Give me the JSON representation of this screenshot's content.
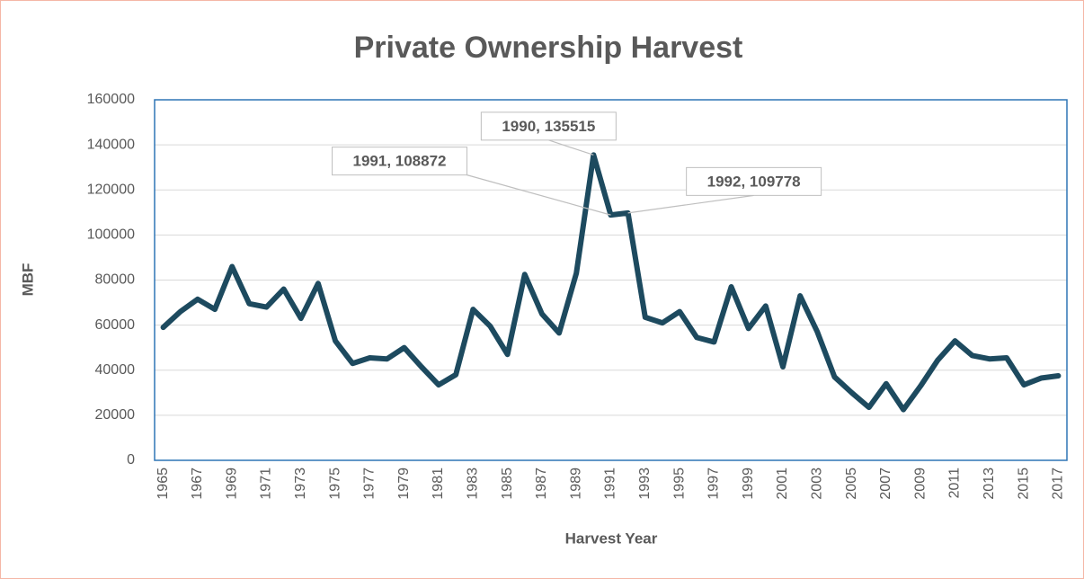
{
  "chart_data": {
    "type": "line",
    "title": "Private Ownership Harvest",
    "x_label": "Harvest Year",
    "y_label": "MBF",
    "x": [
      1965,
      1966,
      1967,
      1968,
      1969,
      1970,
      1971,
      1972,
      1973,
      1974,
      1975,
      1976,
      1977,
      1978,
      1979,
      1980,
      1981,
      1982,
      1983,
      1984,
      1985,
      1986,
      1987,
      1988,
      1989,
      1990,
      1991,
      1992,
      1993,
      1994,
      1995,
      1996,
      1997,
      1998,
      1999,
      2000,
      2001,
      2002,
      2003,
      2004,
      2005,
      2006,
      2007,
      2008,
      2009,
      2010,
      2011,
      2012,
      2013,
      2014,
      2015,
      2016,
      2017
    ],
    "series": [
      {
        "name": "Private",
        "color": "#1d4a5f",
        "values": [
          59000,
          66000,
          71500,
          67000,
          86000,
          69500,
          68000,
          76000,
          63000,
          78500,
          53000,
          43000,
          45500,
          45000,
          50000,
          41500,
          33500,
          38000,
          67000,
          59500,
          47000,
          82500,
          65000,
          56500,
          83000,
          135515,
          108872,
          109778,
          63500,
          61000,
          66000,
          54500,
          52500,
          77000,
          58500,
          68500,
          41500,
          73000,
          57000,
          37000,
          30000,
          23500,
          34000,
          22500,
          33000,
          44500,
          53000,
          46500,
          45000,
          45500,
          33500,
          36500,
          37500
        ]
      }
    ],
    "annotations": [
      {
        "text": "1990, 135515",
        "x": 1990,
        "y": 135515
      },
      {
        "text": "1991, 108872",
        "x": 1991,
        "y": 108872
      },
      {
        "text": "1992, 109778",
        "x": 1992,
        "y": 109778
      }
    ],
    "xlim": [
      1964.5,
      2017.5
    ],
    "xticks": [
      1965,
      1967,
      1969,
      1971,
      1973,
      1975,
      1977,
      1979,
      1981,
      1983,
      1985,
      1987,
      1989,
      1991,
      1993,
      1995,
      1997,
      1999,
      2001,
      2003,
      2005,
      2007,
      2009,
      2011,
      2013,
      2015,
      2017
    ],
    "ylim": [
      0,
      160000
    ],
    "yticks": [
      0,
      20000,
      40000,
      60000,
      80000,
      100000,
      120000,
      140000,
      160000
    ],
    "grid": true
  }
}
